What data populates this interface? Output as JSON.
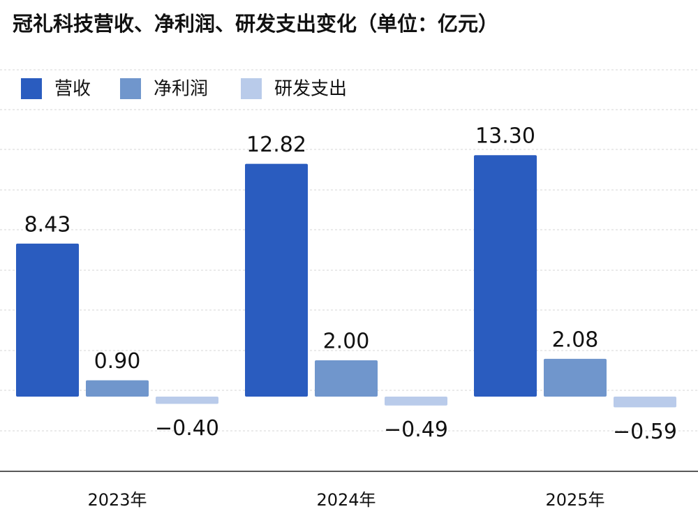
{
  "chart_data": {
    "type": "bar",
    "title": "冠礼科技营收、净利润、研发支出变化（单位：亿元）",
    "categories": [
      "2023年",
      "2024年",
      "2025年"
    ],
    "series": [
      {
        "name": "营收",
        "color": "#2a5cbf",
        "values": [
          8.43,
          12.82,
          13.3
        ],
        "value_labels": [
          "8.43",
          "12.82",
          "13.30"
        ]
      },
      {
        "name": "净利润",
        "color": "#7096cc",
        "values": [
          0.9,
          2.0,
          2.08
        ],
        "value_labels": [
          "0.90",
          "2.00",
          "2.08"
        ]
      },
      {
        "name": "研发支出",
        "color": "#b9cbea",
        "values": [
          -0.4,
          -0.49,
          -0.59
        ],
        "value_labels": [
          "−0.40",
          "−0.49",
          "−0.59"
        ]
      }
    ],
    "ylim": [
      -4,
      18
    ]
  }
}
